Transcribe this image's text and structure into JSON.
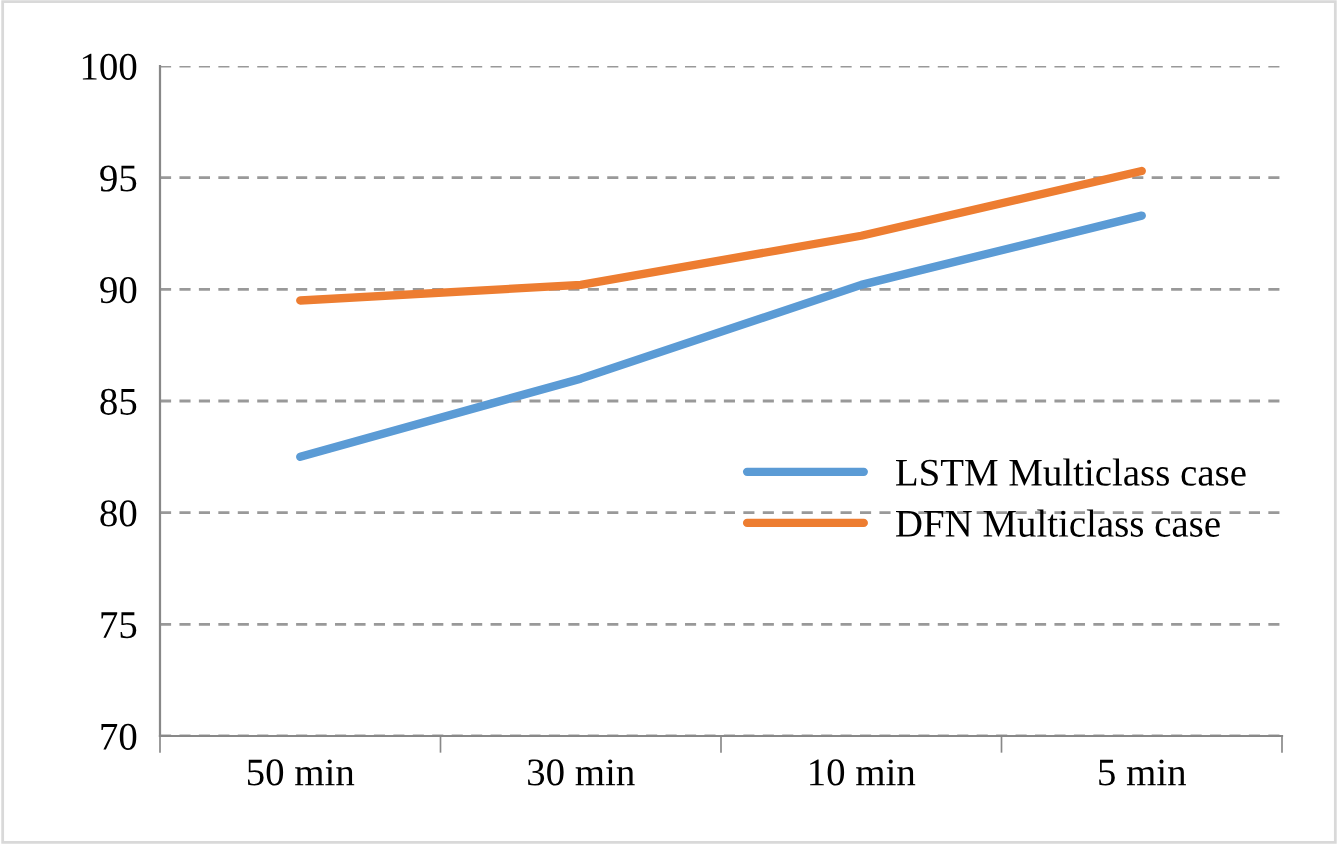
{
  "chart_data": {
    "type": "line",
    "categories": [
      "50 min",
      "30 min",
      "10 min",
      "5 min"
    ],
    "series": [
      {
        "name": "LSTM Multiclass case",
        "color": "#5b9bd5",
        "values": [
          82.5,
          86.0,
          90.2,
          93.3
        ]
      },
      {
        "name": "DFN Multiclass case",
        "color": "#ed7d31",
        "values": [
          89.5,
          90.2,
          92.4,
          95.3
        ]
      }
    ],
    "ylim": [
      70,
      100
    ],
    "yticks": [
      70,
      75,
      80,
      85,
      90,
      95,
      100
    ],
    "grid": "y",
    "legend": "right",
    "marker": "none",
    "line_style": "solid"
  }
}
